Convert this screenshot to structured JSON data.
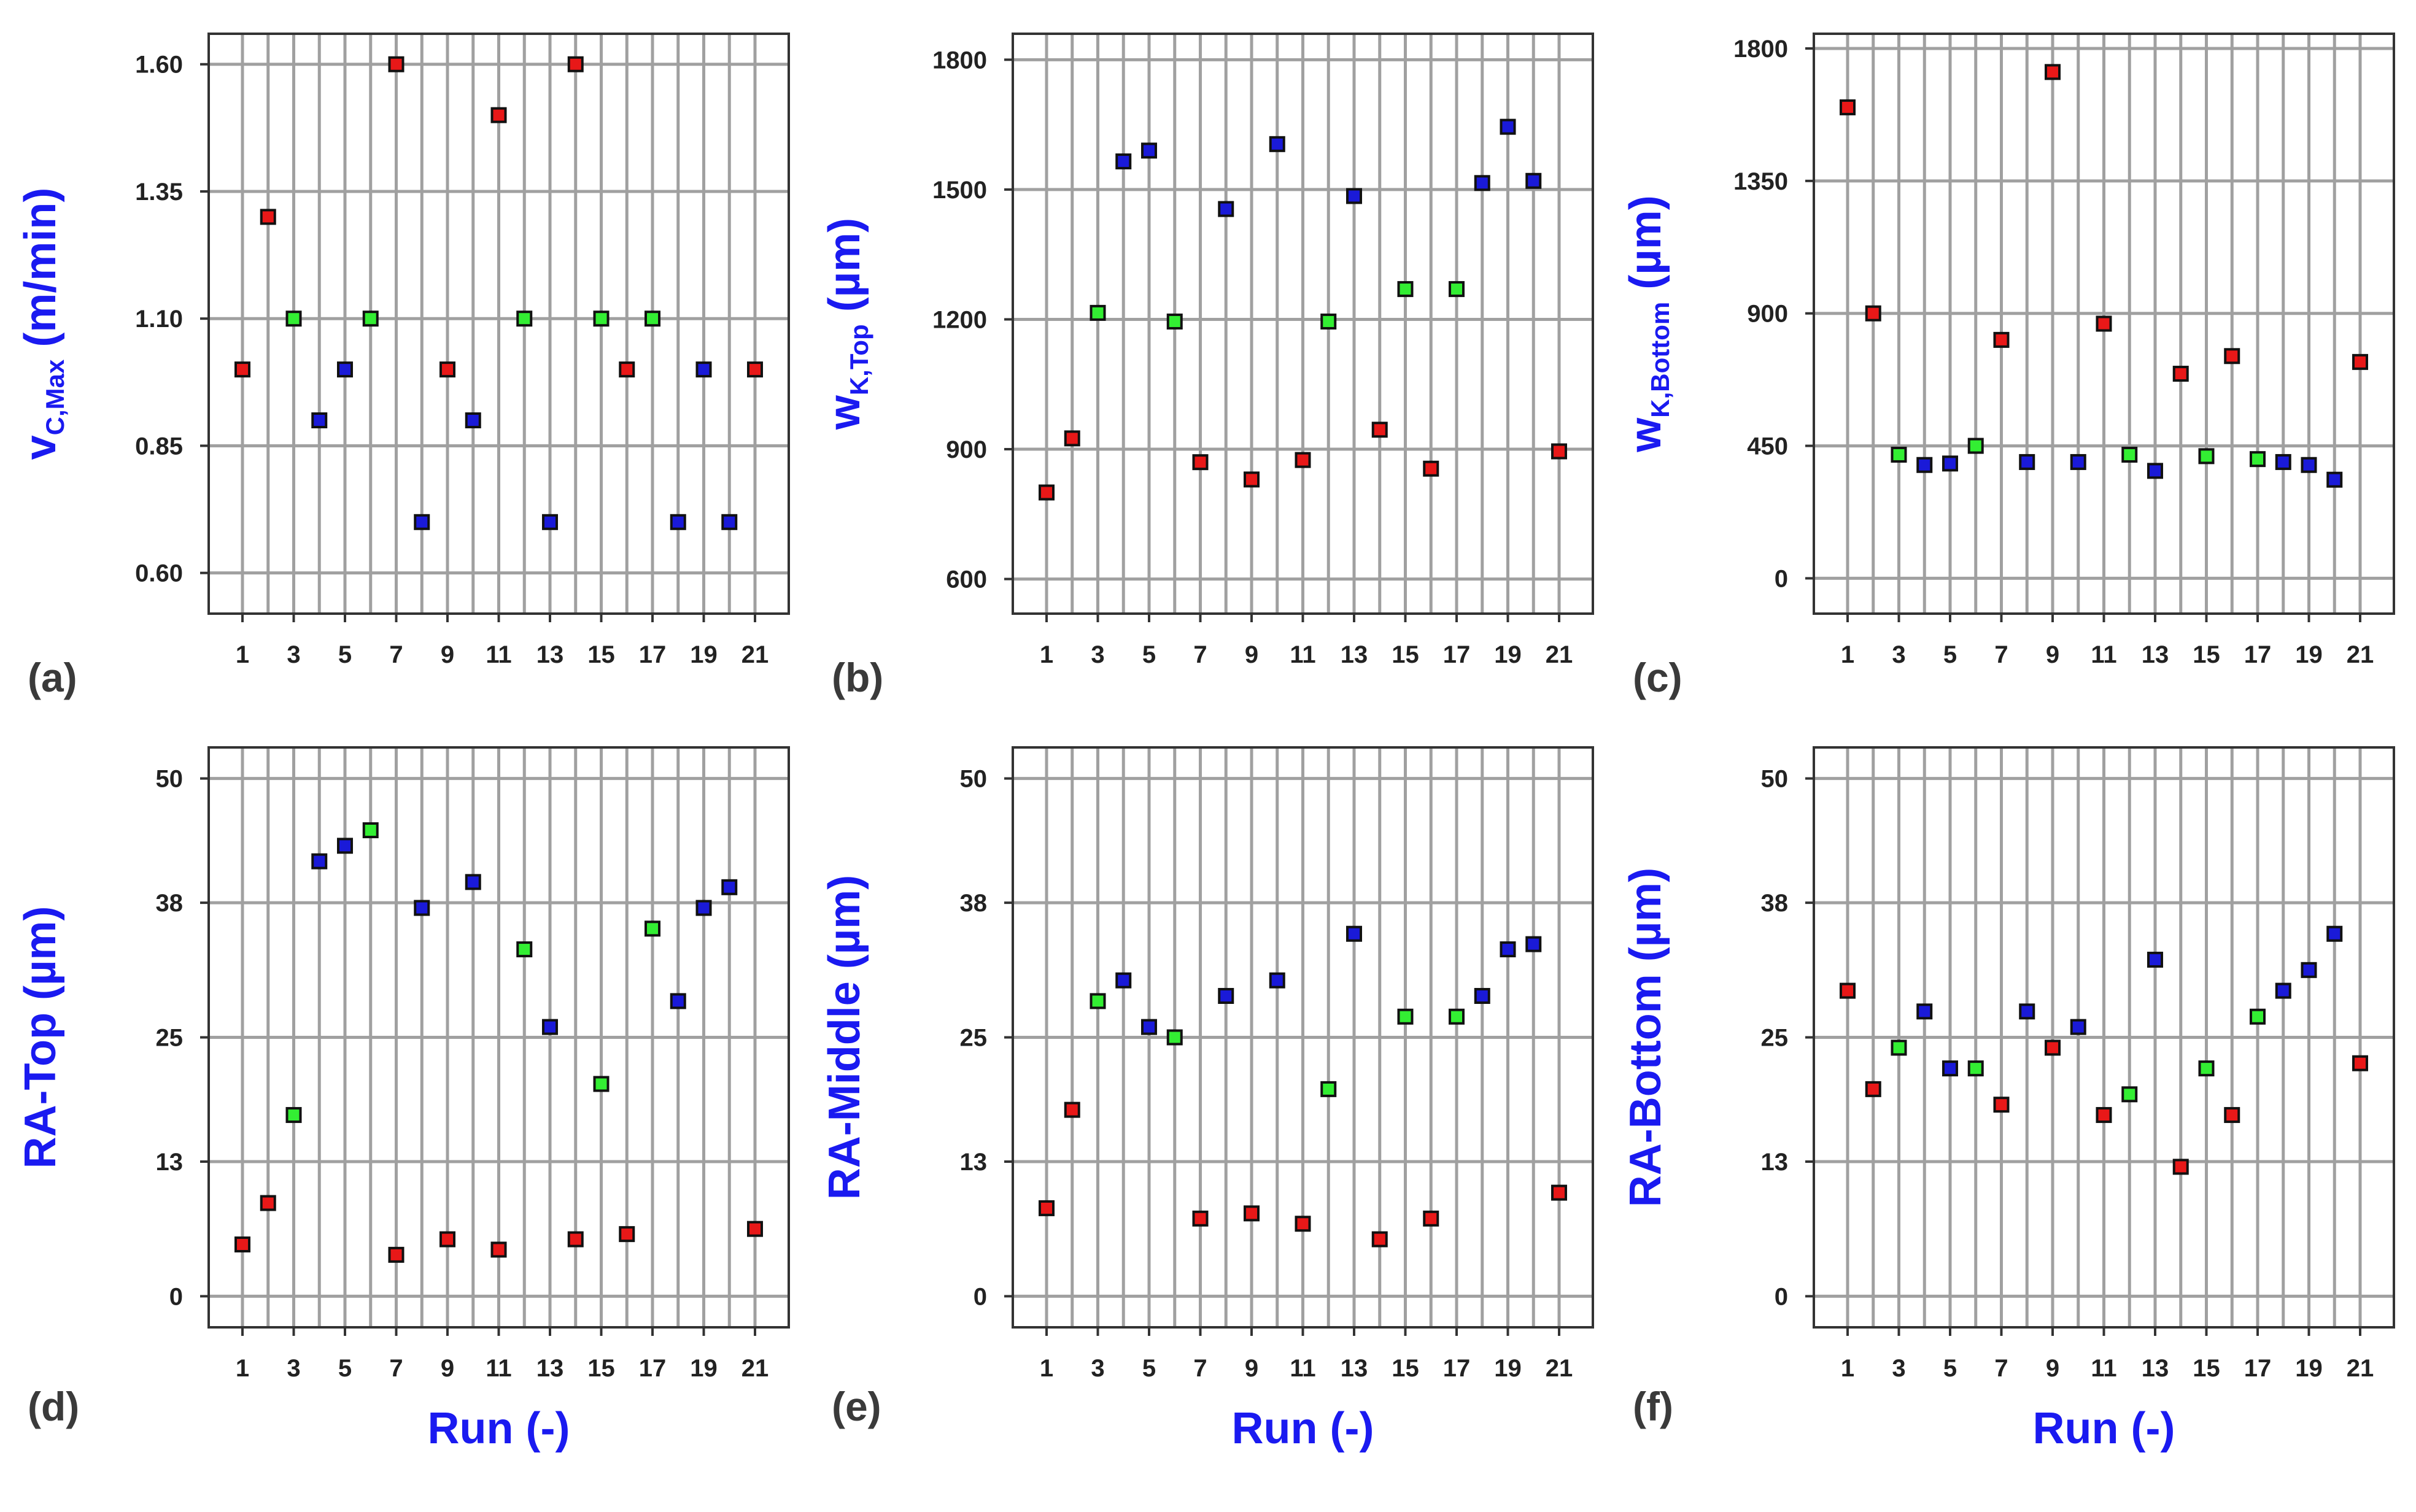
{
  "colors": {
    "red": "#e81818",
    "green": "#33ee33",
    "blue": "#1a1ad8",
    "title": "#1a1af0"
  },
  "x_label": "Run (-)",
  "chart_data": [
    {
      "id": "a",
      "type": "scatter",
      "panel_label": "(a)",
      "ylabel_main": "v",
      "ylabel_sub": "C,Max",
      "ylabel_rest": " (m/min)",
      "ylim": [
        0.52,
        1.66
      ],
      "yticks": [
        "0.60",
        "0.85",
        "1.10",
        "1.35",
        "1.60"
      ],
      "xticks": [
        "1",
        "3",
        "5",
        "7",
        "9",
        "11",
        "13",
        "15",
        "17",
        "19",
        "21"
      ],
      "xlim": [
        0,
        22
      ],
      "points": [
        {
          "x": 1,
          "y": 1.0,
          "c": "red"
        },
        {
          "x": 2,
          "y": 1.3,
          "c": "red"
        },
        {
          "x": 3,
          "y": 1.1,
          "c": "green"
        },
        {
          "x": 4,
          "y": 0.9,
          "c": "blue"
        },
        {
          "x": 5,
          "y": 1.0,
          "c": "blue"
        },
        {
          "x": 6,
          "y": 1.1,
          "c": "green"
        },
        {
          "x": 7,
          "y": 1.6,
          "c": "red"
        },
        {
          "x": 8,
          "y": 0.7,
          "c": "blue"
        },
        {
          "x": 9,
          "y": 1.0,
          "c": "red"
        },
        {
          "x": 10,
          "y": 0.9,
          "c": "blue"
        },
        {
          "x": 11,
          "y": 1.5,
          "c": "red"
        },
        {
          "x": 12,
          "y": 1.1,
          "c": "green"
        },
        {
          "x": 13,
          "y": 0.7,
          "c": "blue"
        },
        {
          "x": 14,
          "y": 1.6,
          "c": "red"
        },
        {
          "x": 15,
          "y": 1.1,
          "c": "green"
        },
        {
          "x": 16,
          "y": 1.0,
          "c": "red"
        },
        {
          "x": 17,
          "y": 1.1,
          "c": "green"
        },
        {
          "x": 18,
          "y": 0.7,
          "c": "blue"
        },
        {
          "x": 19,
          "y": 1.0,
          "c": "blue"
        },
        {
          "x": 20,
          "y": 0.7,
          "c": "blue"
        },
        {
          "x": 21,
          "y": 1.0,
          "c": "red"
        }
      ]
    },
    {
      "id": "b",
      "type": "scatter",
      "panel_label": "(b)",
      "ylabel_main": "w",
      "ylabel_sub": "K,Top",
      "ylabel_rest": " (µm)",
      "ylim": [
        520,
        1860
      ],
      "yticks": [
        "600",
        "900",
        "1200",
        "1500",
        "1800"
      ],
      "xticks": [
        "1",
        "3",
        "5",
        "7",
        "9",
        "11",
        "13",
        "15",
        "17",
        "19",
        "21"
      ],
      "xlim": [
        0,
        22
      ],
      "points": [
        {
          "x": 1,
          "y": 800,
          "c": "red"
        },
        {
          "x": 2,
          "y": 925,
          "c": "red"
        },
        {
          "x": 3,
          "y": 1215,
          "c": "green"
        },
        {
          "x": 4,
          "y": 1565,
          "c": "blue"
        },
        {
          "x": 5,
          "y": 1590,
          "c": "blue"
        },
        {
          "x": 6,
          "y": 1195,
          "c": "green"
        },
        {
          "x": 7,
          "y": 870,
          "c": "red"
        },
        {
          "x": 8,
          "y": 1455,
          "c": "blue"
        },
        {
          "x": 9,
          "y": 830,
          "c": "red"
        },
        {
          "x": 10,
          "y": 1605,
          "c": "blue"
        },
        {
          "x": 11,
          "y": 875,
          "c": "red"
        },
        {
          "x": 12,
          "y": 1195,
          "c": "green"
        },
        {
          "x": 13,
          "y": 1485,
          "c": "blue"
        },
        {
          "x": 14,
          "y": 945,
          "c": "red"
        },
        {
          "x": 15,
          "y": 1270,
          "c": "green"
        },
        {
          "x": 16,
          "y": 855,
          "c": "red"
        },
        {
          "x": 17,
          "y": 1270,
          "c": "green"
        },
        {
          "x": 18,
          "y": 1515,
          "c": "blue"
        },
        {
          "x": 19,
          "y": 1645,
          "c": "blue"
        },
        {
          "x": 20,
          "y": 1520,
          "c": "blue"
        },
        {
          "x": 21,
          "y": 895,
          "c": "red"
        }
      ]
    },
    {
      "id": "c",
      "type": "scatter",
      "panel_label": "(c)",
      "ylabel_main": "w",
      "ylabel_sub": "K,Bottom",
      "ylabel_rest": " (µm)",
      "ylim": [
        -120,
        1850
      ],
      "yticks": [
        "0",
        "450",
        "900",
        "1350",
        "1800"
      ],
      "xticks": [
        "1",
        "3",
        "5",
        "7",
        "9",
        "11",
        "13",
        "15",
        "17",
        "19",
        "21"
      ],
      "xlim": [
        0,
        22
      ],
      "points": [
        {
          "x": 1,
          "y": 1600,
          "c": "red"
        },
        {
          "x": 2,
          "y": 900,
          "c": "red"
        },
        {
          "x": 3,
          "y": 420,
          "c": "green"
        },
        {
          "x": 4,
          "y": 385,
          "c": "blue"
        },
        {
          "x": 5,
          "y": 390,
          "c": "blue"
        },
        {
          "x": 6,
          "y": 450,
          "c": "green"
        },
        {
          "x": 7,
          "y": 810,
          "c": "red"
        },
        {
          "x": 8,
          "y": 395,
          "c": "blue"
        },
        {
          "x": 9,
          "y": 1720,
          "c": "red"
        },
        {
          "x": 10,
          "y": 395,
          "c": "blue"
        },
        {
          "x": 11,
          "y": 865,
          "c": "red"
        },
        {
          "x": 12,
          "y": 420,
          "c": "green"
        },
        {
          "x": 13,
          "y": 365,
          "c": "blue"
        },
        {
          "x": 14,
          "y": 695,
          "c": "red"
        },
        {
          "x": 15,
          "y": 415,
          "c": "green"
        },
        {
          "x": 16,
          "y": 755,
          "c": "red"
        },
        {
          "x": 17,
          "y": 405,
          "c": "green"
        },
        {
          "x": 18,
          "y": 395,
          "c": "blue"
        },
        {
          "x": 19,
          "y": 385,
          "c": "blue"
        },
        {
          "x": 20,
          "y": 335,
          "c": "blue"
        },
        {
          "x": 21,
          "y": 735,
          "c": "red"
        }
      ]
    },
    {
      "id": "d",
      "type": "scatter",
      "panel_label": "(d)",
      "ylabel_main": "RA-Top (µm)",
      "ylabel_sub": "",
      "ylabel_rest": "",
      "ylim": [
        -3,
        53
      ],
      "yticks": [
        "0",
        "13",
        "25",
        "38",
        "50"
      ],
      "xticks": [
        "1",
        "3",
        "5",
        "7",
        "9",
        "11",
        "13",
        "15",
        "17",
        "19",
        "21"
      ],
      "xlim": [
        0,
        22
      ],
      "points": [
        {
          "x": 1,
          "y": 5,
          "c": "red"
        },
        {
          "x": 2,
          "y": 9,
          "c": "red"
        },
        {
          "x": 3,
          "y": 17.5,
          "c": "green"
        },
        {
          "x": 4,
          "y": 42,
          "c": "blue"
        },
        {
          "x": 5,
          "y": 43.5,
          "c": "blue"
        },
        {
          "x": 6,
          "y": 45,
          "c": "green"
        },
        {
          "x": 7,
          "y": 4,
          "c": "red"
        },
        {
          "x": 8,
          "y": 37.5,
          "c": "blue"
        },
        {
          "x": 9,
          "y": 5.5,
          "c": "red"
        },
        {
          "x": 10,
          "y": 40,
          "c": "blue"
        },
        {
          "x": 11,
          "y": 4.5,
          "c": "red"
        },
        {
          "x": 12,
          "y": 33.5,
          "c": "green"
        },
        {
          "x": 13,
          "y": 26,
          "c": "blue"
        },
        {
          "x": 14,
          "y": 5.5,
          "c": "red"
        },
        {
          "x": 15,
          "y": 20.5,
          "c": "green"
        },
        {
          "x": 16,
          "y": 6,
          "c": "red"
        },
        {
          "x": 17,
          "y": 35.5,
          "c": "green"
        },
        {
          "x": 18,
          "y": 28.5,
          "c": "blue"
        },
        {
          "x": 19,
          "y": 37.5,
          "c": "blue"
        },
        {
          "x": 20,
          "y": 39.5,
          "c": "blue"
        },
        {
          "x": 21,
          "y": 6.5,
          "c": "red"
        }
      ]
    },
    {
      "id": "e",
      "type": "scatter",
      "panel_label": "(e)",
      "ylabel_main": "RA-Middle (µm)",
      "ylabel_sub": "",
      "ylabel_rest": "",
      "ylim": [
        -3,
        53
      ],
      "yticks": [
        "0",
        "13",
        "25",
        "38",
        "50"
      ],
      "xticks": [
        "1",
        "3",
        "5",
        "7",
        "9",
        "11",
        "13",
        "15",
        "17",
        "19",
        "21"
      ],
      "xlim": [
        0,
        22
      ],
      "points": [
        {
          "x": 1,
          "y": 8.5,
          "c": "red"
        },
        {
          "x": 2,
          "y": 18,
          "c": "red"
        },
        {
          "x": 3,
          "y": 28.5,
          "c": "green"
        },
        {
          "x": 4,
          "y": 30.5,
          "c": "blue"
        },
        {
          "x": 5,
          "y": 26,
          "c": "blue"
        },
        {
          "x": 6,
          "y": 25,
          "c": "green"
        },
        {
          "x": 7,
          "y": 7.5,
          "c": "red"
        },
        {
          "x": 8,
          "y": 29,
          "c": "blue"
        },
        {
          "x": 9,
          "y": 8,
          "c": "red"
        },
        {
          "x": 10,
          "y": 30.5,
          "c": "blue"
        },
        {
          "x": 11,
          "y": 7,
          "c": "red"
        },
        {
          "x": 12,
          "y": 20,
          "c": "green"
        },
        {
          "x": 13,
          "y": 35,
          "c": "blue"
        },
        {
          "x": 14,
          "y": 5.5,
          "c": "red"
        },
        {
          "x": 15,
          "y": 27,
          "c": "green"
        },
        {
          "x": 16,
          "y": 7.5,
          "c": "red"
        },
        {
          "x": 17,
          "y": 27,
          "c": "green"
        },
        {
          "x": 18,
          "y": 29,
          "c": "blue"
        },
        {
          "x": 19,
          "y": 33.5,
          "c": "blue"
        },
        {
          "x": 20,
          "y": 34,
          "c": "blue"
        },
        {
          "x": 21,
          "y": 10,
          "c": "red"
        }
      ]
    },
    {
      "id": "f",
      "type": "scatter",
      "panel_label": "(f)",
      "ylabel_main": "RA-Bottom (µm)",
      "ylabel_sub": "",
      "ylabel_rest": "",
      "ylim": [
        -3,
        53
      ],
      "yticks": [
        "0",
        "13",
        "25",
        "38",
        "50"
      ],
      "xticks": [
        "1",
        "3",
        "5",
        "7",
        "9",
        "11",
        "13",
        "15",
        "17",
        "19",
        "21"
      ],
      "xlim": [
        0,
        22
      ],
      "points": [
        {
          "x": 1,
          "y": 29.5,
          "c": "red"
        },
        {
          "x": 2,
          "y": 20,
          "c": "red"
        },
        {
          "x": 3,
          "y": 24,
          "c": "green"
        },
        {
          "x": 4,
          "y": 27.5,
          "c": "blue"
        },
        {
          "x": 5,
          "y": 22,
          "c": "blue"
        },
        {
          "x": 6,
          "y": 22,
          "c": "green"
        },
        {
          "x": 7,
          "y": 18.5,
          "c": "red"
        },
        {
          "x": 8,
          "y": 27.5,
          "c": "blue"
        },
        {
          "x": 9,
          "y": 24,
          "c": "red"
        },
        {
          "x": 10,
          "y": 26,
          "c": "blue"
        },
        {
          "x": 11,
          "y": 17.5,
          "c": "red"
        },
        {
          "x": 12,
          "y": 19.5,
          "c": "green"
        },
        {
          "x": 13,
          "y": 32.5,
          "c": "blue"
        },
        {
          "x": 14,
          "y": 12.5,
          "c": "red"
        },
        {
          "x": 15,
          "y": 22,
          "c": "green"
        },
        {
          "x": 16,
          "y": 17.5,
          "c": "red"
        },
        {
          "x": 17,
          "y": 27,
          "c": "green"
        },
        {
          "x": 18,
          "y": 29.5,
          "c": "blue"
        },
        {
          "x": 19,
          "y": 31.5,
          "c": "blue"
        },
        {
          "x": 20,
          "y": 35,
          "c": "blue"
        },
        {
          "x": 21,
          "y": 22.5,
          "c": "red"
        }
      ]
    }
  ]
}
